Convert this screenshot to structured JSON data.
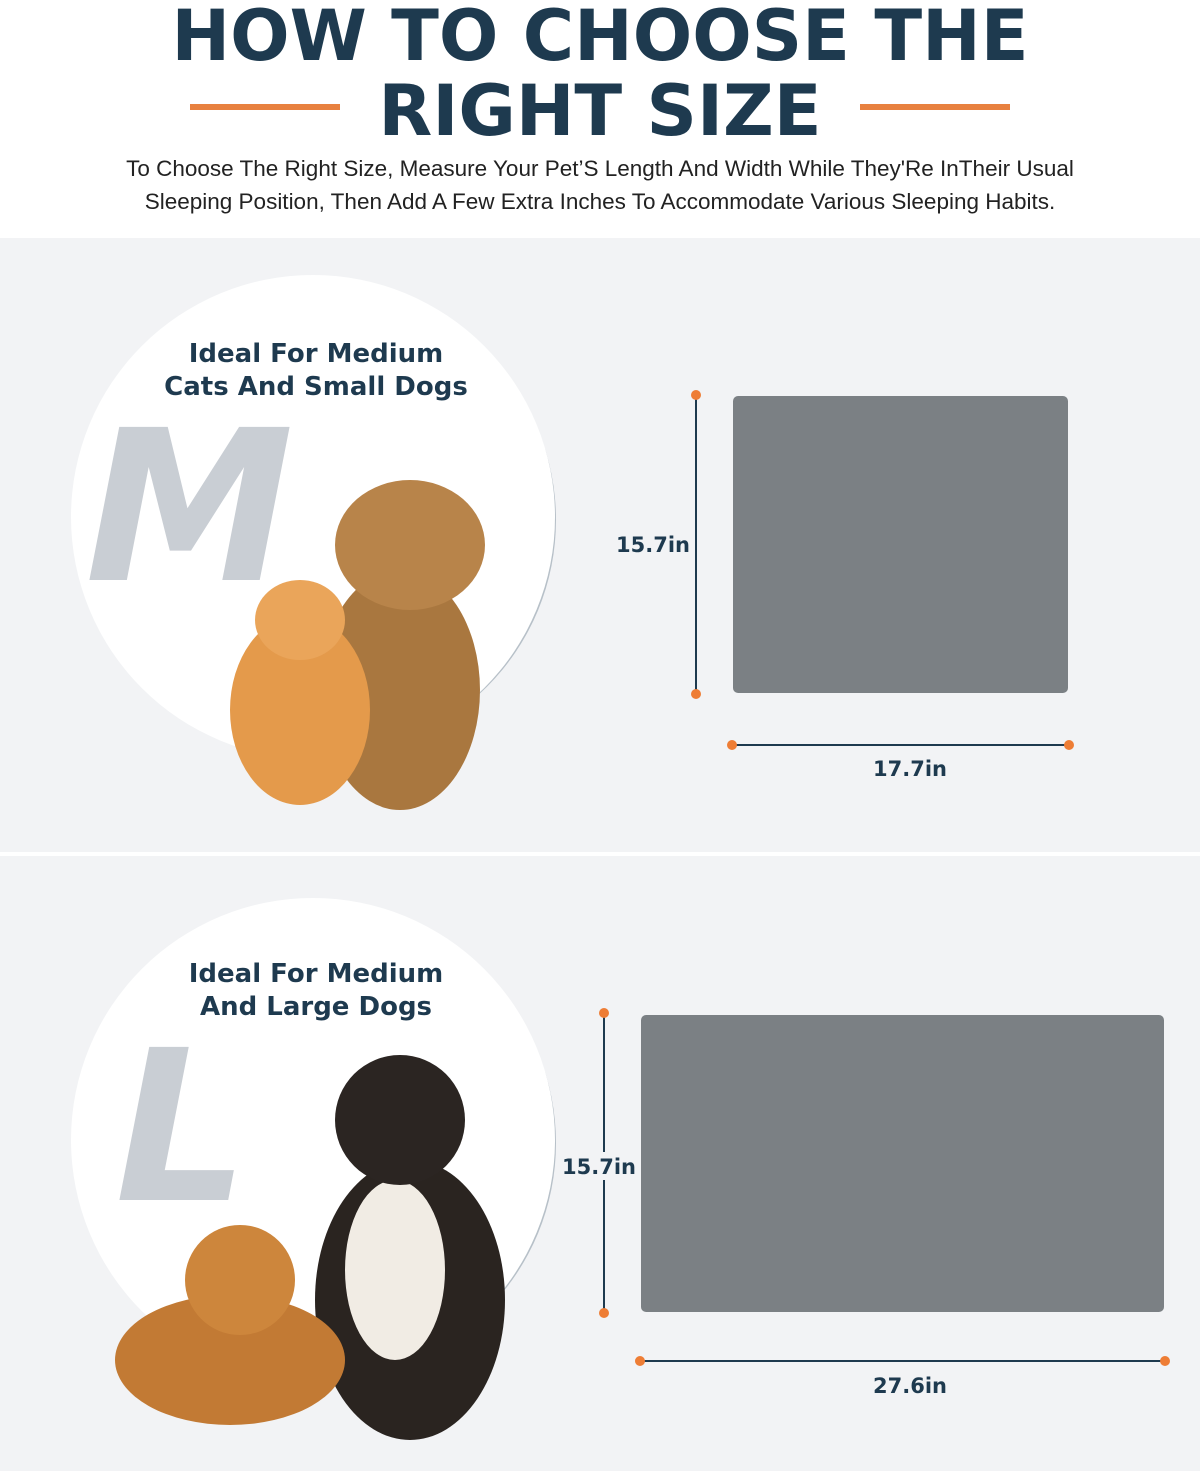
{
  "header": {
    "title_lines": [
      "HOW TO CHOOSE THE",
      "RIGHT SIZE"
    ],
    "description_lines": [
      "To Choose The Right Size, Measure Your Pet’S Length And Width While They'Re InTheir Usual",
      "Sleeping Position, Then Add A Few Extra Inches To Accommodate Various Sleeping Habits."
    ]
  },
  "sizes": [
    {
      "letter": "M",
      "caption_lines": [
        "Ideal For Medium",
        "Cats And Small Dogs"
      ],
      "height": "15.7in",
      "width": "17.7in"
    },
    {
      "letter": "L",
      "caption_lines": [
        "Ideal For Medium",
        "And Large Dogs"
      ],
      "height": "15.7in",
      "width": "27.6in"
    }
  ]
}
